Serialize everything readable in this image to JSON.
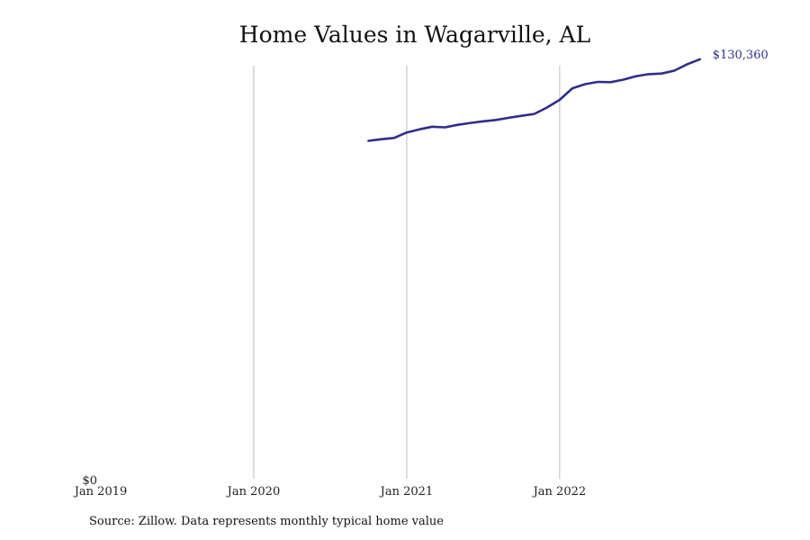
{
  "chart_data": {
    "type": "line",
    "title": "Home Values in Wagarville, AL",
    "source": "Source: Zillow. Data represents monthly typical home value",
    "xlabel": "",
    "ylabel": "",
    "x_ticks": [
      "Jan 2019",
      "Jan 2020",
      "Jan 2021",
      "Jan 2022"
    ],
    "x_range": [
      "2019-01",
      "2023-02"
    ],
    "y_ticks": [
      "$0"
    ],
    "ylim": [
      0,
      132000
    ],
    "grid": "vertical lines at x ticks",
    "line_color": "#2e2e8c",
    "end_label": "$130,360",
    "series": [
      {
        "x": [
          "2020-10",
          "2020-11",
          "2020-12",
          "2021-01",
          "2021-02",
          "2021-03",
          "2021-04",
          "2021-05",
          "2021-06",
          "2021-07",
          "2021-08",
          "2021-09",
          "2021-10",
          "2021-11",
          "2021-12",
          "2022-01",
          "2022-02",
          "2022-03",
          "2022-04",
          "2022-05",
          "2022-06",
          "2022-07",
          "2022-08",
          "2022-09",
          "2022-10",
          "2022-11",
          "2022-12"
        ],
        "values": [
          104900,
          105400,
          105800,
          107500,
          108500,
          109300,
          109100,
          109900,
          110500,
          111000,
          111400,
          112100,
          112700,
          113300,
          115300,
          117700,
          121300,
          122600,
          123300,
          123200,
          124000,
          125100,
          125700,
          125900,
          126800,
          128800,
          130360
        ]
      }
    ]
  }
}
